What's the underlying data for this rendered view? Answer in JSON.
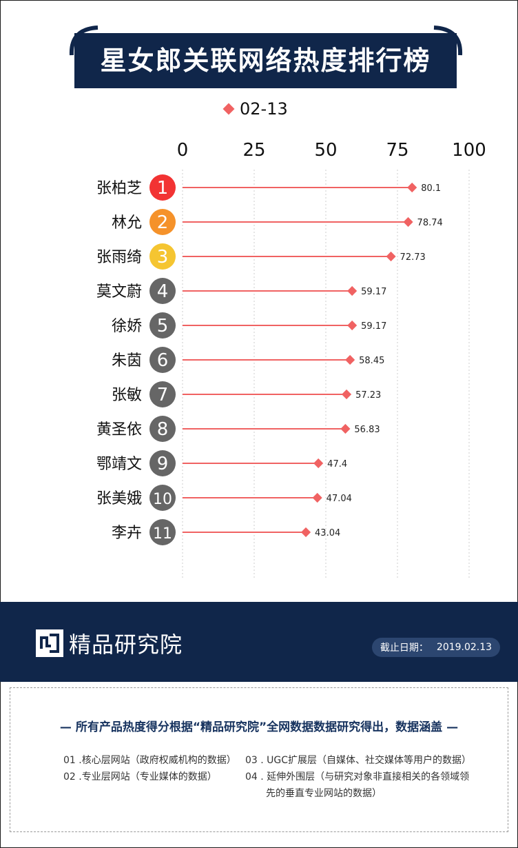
{
  "header": {
    "title": "星女郎关联网络热度排行榜"
  },
  "chart_data": {
    "type": "bar",
    "orientation": "horizontal",
    "marker": "diamond",
    "title": "星女郎关联网络热度排行榜",
    "xlim": [
      0,
      100
    ],
    "xticks": [
      "0",
      "25",
      "50",
      "75",
      "100"
    ],
    "grid": true,
    "legend": "top",
    "series": [
      {
        "name": "02-13",
        "color": "#f06262",
        "values": [
          80.1,
          78.74,
          72.73,
          59.17,
          59.17,
          58.45,
          57.23,
          56.83,
          47.4,
          47.04,
          43.04
        ],
        "labels": [
          "80.1",
          "78.74",
          "72.73",
          "59.17",
          "59.17",
          "58.45",
          "57.23",
          "56.83",
          "47.4",
          "47.04",
          "43.04"
        ]
      }
    ],
    "categories": [
      "张柏芝",
      "林允",
      "张雨绮",
      "莫文蔚",
      "徐娇",
      "朱茵",
      "张敏",
      "黄圣依",
      "鄂靖文",
      "张美娥",
      "李卉"
    ],
    "ranks": [
      "1",
      "2",
      "3",
      "4",
      "5",
      "6",
      "7",
      "8",
      "9",
      "10",
      "11"
    ],
    "rank_colors": [
      "#f23333",
      "#f5922a",
      "#f5c531",
      "#666666",
      "#666666",
      "#666666",
      "#666666",
      "#666666",
      "#666666",
      "#666666",
      "#666666"
    ]
  },
  "footer": {
    "brand": "精品研究院",
    "logo_icon": "brand-logo-icon",
    "date_label": "截止日期：",
    "date_value": "2019.02.13"
  },
  "notes": {
    "heading": "— 所有产品热度得分根据“精品研究院”全网数据数据研究得出，数据涵盖 —",
    "items": [
      "01 .核心层网站（政府权威机构的数据）",
      "02 .专业层网站（专业媒体的数据）",
      "03 . UGC扩展层（自媒体、社交媒体等用户的数据）",
      "04 . 延伸外围层（与研究对象非直接相关的各领域领",
      "先的垂直专业网站的数据）"
    ]
  }
}
